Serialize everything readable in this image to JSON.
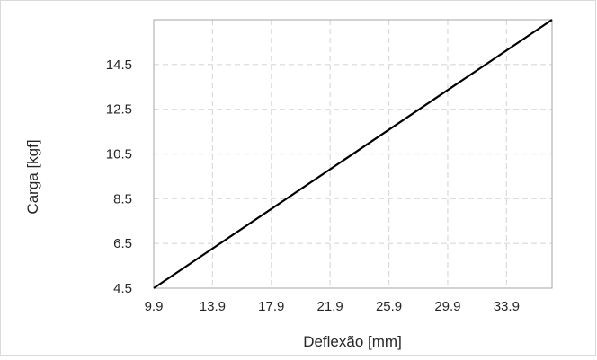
{
  "chart_data": {
    "type": "line",
    "title": "",
    "xlabel": "Deflexão [mm]",
    "ylabel": "Carga [kgf]",
    "x_ticks": [
      "9.9",
      "13.9",
      "17.9",
      "21.9",
      "25.9",
      "29.9",
      "33.9"
    ],
    "y_ticks": [
      "4.5",
      "6.5",
      "8.5",
      "10.5",
      "12.5",
      "14.5"
    ],
    "xlim": [
      9.9,
      37.0
    ],
    "ylim": [
      4.5,
      16.5
    ],
    "grid": true,
    "grid_style": "dashed",
    "series": [
      {
        "color": "#000000",
        "x": [
          9.9,
          37.0
        ],
        "y": [
          4.5,
          16.5
        ]
      }
    ]
  }
}
